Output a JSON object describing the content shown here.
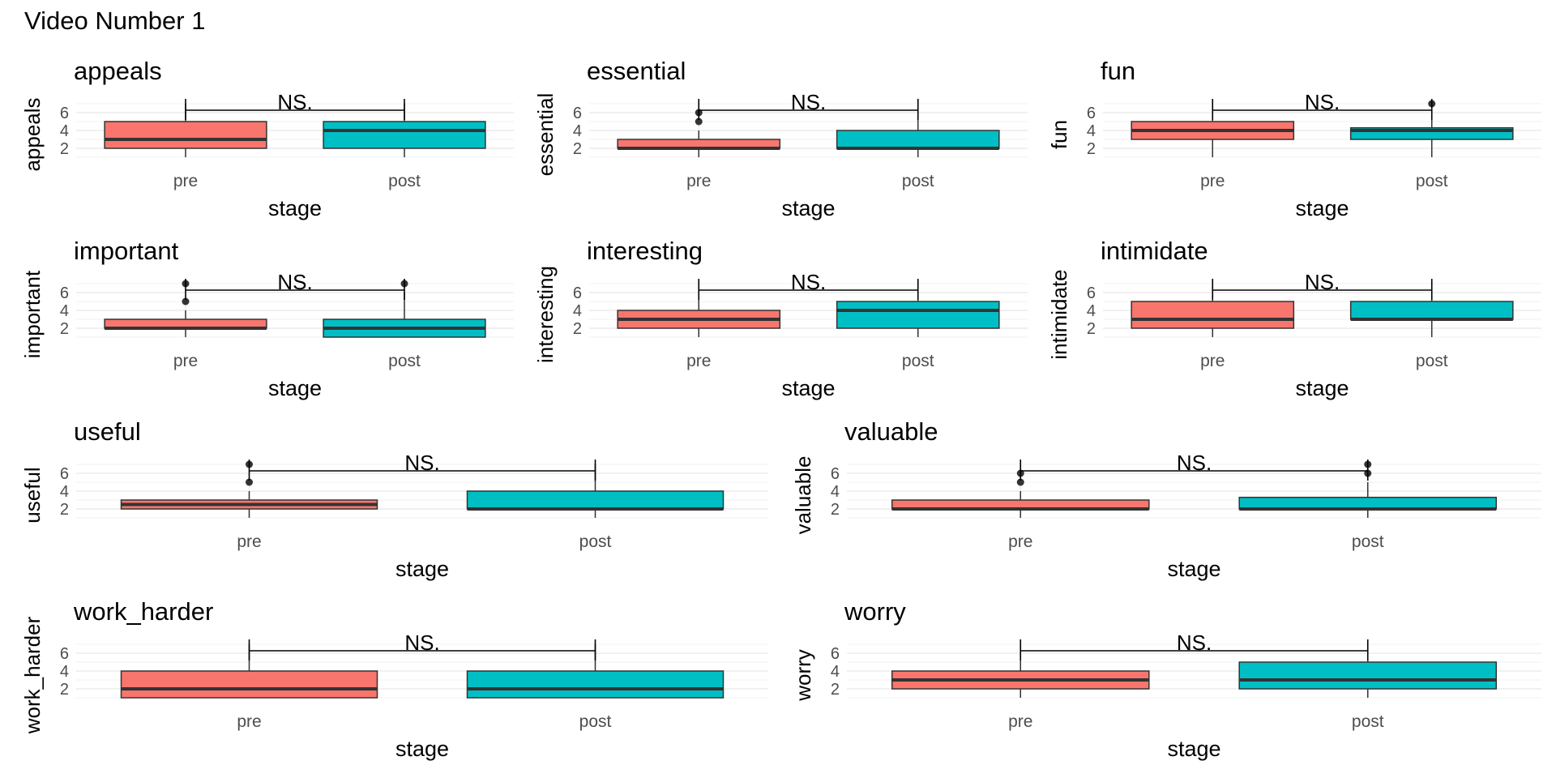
{
  "figure_title": "Video Number 1",
  "colors": {
    "pre": "#F8766D",
    "post": "#00BFC4",
    "grid": "#EBEBEB",
    "box_line": "#333333"
  },
  "chart_data": [
    {
      "type": "box",
      "title": "appeals",
      "xlabel": "stage",
      "ylabel": "appeals",
      "categories": [
        "pre",
        "post"
      ],
      "yticks": [
        2,
        4,
        6
      ],
      "ylim": [
        1,
        7
      ],
      "grid": true,
      "significance": "NS.",
      "boxes": [
        {
          "q1": 2,
          "median": 3,
          "q3": 5,
          "whisker_low": 1,
          "whisker_high": 7,
          "outliers": []
        },
        {
          "q1": 2,
          "median": 4,
          "q3": 5,
          "whisker_low": 1,
          "whisker_high": 7,
          "outliers": []
        }
      ]
    },
    {
      "type": "box",
      "title": "essential",
      "xlabel": "stage",
      "ylabel": "essential",
      "categories": [
        "pre",
        "post"
      ],
      "yticks": [
        2,
        4,
        6
      ],
      "ylim": [
        1,
        7
      ],
      "grid": true,
      "significance": "NS.",
      "boxes": [
        {
          "q1": 2,
          "median": 2,
          "q3": 3,
          "whisker_low": 1,
          "whisker_high": 4,
          "outliers": [
            5,
            6
          ]
        },
        {
          "q1": 2,
          "median": 2,
          "q3": 4,
          "whisker_low": 1,
          "whisker_high": 7,
          "outliers": []
        }
      ]
    },
    {
      "type": "box",
      "title": "fun",
      "xlabel": "stage",
      "ylabel": "fun",
      "categories": [
        "pre",
        "post"
      ],
      "yticks": [
        2,
        4,
        6
      ],
      "ylim": [
        1,
        7
      ],
      "grid": true,
      "significance": "NS.",
      "boxes": [
        {
          "q1": 3,
          "median": 4,
          "q3": 5,
          "whisker_low": 1,
          "whisker_high": 7,
          "outliers": []
        },
        {
          "q1": 3,
          "median": 4,
          "q3": 4.3,
          "whisker_low": 1,
          "whisker_high": 6.5,
          "outliers": [
            7
          ]
        }
      ]
    },
    {
      "type": "box",
      "title": "important",
      "xlabel": "stage",
      "ylabel": "important",
      "categories": [
        "pre",
        "post"
      ],
      "yticks": [
        2,
        4,
        6
      ],
      "ylim": [
        1,
        7
      ],
      "grid": true,
      "significance": "NS.",
      "boxes": [
        {
          "q1": 2,
          "median": 2,
          "q3": 3,
          "whisker_low": 1,
          "whisker_high": 4,
          "outliers": [
            5,
            7
          ]
        },
        {
          "q1": 1,
          "median": 2,
          "q3": 3,
          "whisker_low": 1,
          "whisker_high": 6,
          "outliers": [
            7
          ]
        }
      ]
    },
    {
      "type": "box",
      "title": "interesting",
      "xlabel": "stage",
      "ylabel": "interesting",
      "categories": [
        "pre",
        "post"
      ],
      "yticks": [
        2,
        4,
        6
      ],
      "ylim": [
        1,
        7
      ],
      "grid": true,
      "significance": "NS.",
      "boxes": [
        {
          "q1": 2,
          "median": 3,
          "q3": 4,
          "whisker_low": 1,
          "whisker_high": 7,
          "outliers": []
        },
        {
          "q1": 2,
          "median": 4,
          "q3": 5,
          "whisker_low": 1,
          "whisker_high": 7,
          "outliers": []
        }
      ]
    },
    {
      "type": "box",
      "title": "intimidate",
      "xlabel": "stage",
      "ylabel": "intimidate",
      "categories": [
        "pre",
        "post"
      ],
      "yticks": [
        2,
        4,
        6
      ],
      "ylim": [
        1,
        7
      ],
      "grid": true,
      "significance": "NS.",
      "boxes": [
        {
          "q1": 2,
          "median": 3,
          "q3": 5,
          "whisker_low": 1,
          "whisker_high": 7,
          "outliers": []
        },
        {
          "q1": 3,
          "median": 3,
          "q3": 5,
          "whisker_low": 1,
          "whisker_high": 7,
          "outliers": []
        }
      ]
    },
    {
      "type": "box",
      "title": "useful",
      "xlabel": "stage",
      "ylabel": "useful",
      "categories": [
        "pre",
        "post"
      ],
      "yticks": [
        2,
        4,
        6
      ],
      "ylim": [
        1,
        7
      ],
      "grid": true,
      "significance": "NS.",
      "boxes": [
        {
          "q1": 2,
          "median": 2.5,
          "q3": 3,
          "whisker_low": 1,
          "whisker_high": 4,
          "outliers": [
            5,
            7
          ]
        },
        {
          "q1": 2,
          "median": 2,
          "q3": 4,
          "whisker_low": 1,
          "whisker_high": 7,
          "outliers": []
        }
      ]
    },
    {
      "type": "box",
      "title": "valuable",
      "xlabel": "stage",
      "ylabel": "valuable",
      "categories": [
        "pre",
        "post"
      ],
      "yticks": [
        2,
        4,
        6
      ],
      "ylim": [
        1,
        7
      ],
      "grid": true,
      "significance": "NS.",
      "boxes": [
        {
          "q1": 2,
          "median": 2,
          "q3": 3,
          "whisker_low": 1,
          "whisker_high": 4,
          "outliers": [
            5,
            6
          ]
        },
        {
          "q1": 2,
          "median": 2,
          "q3": 3.3,
          "whisker_low": 1,
          "whisker_high": 5,
          "outliers": [
            6,
            7
          ]
        }
      ]
    },
    {
      "type": "box",
      "title": "work_harder",
      "xlabel": "stage",
      "ylabel": "work_harder",
      "categories": [
        "pre",
        "post"
      ],
      "yticks": [
        2,
        4,
        6
      ],
      "ylim": [
        1,
        7
      ],
      "grid": true,
      "significance": "NS.",
      "boxes": [
        {
          "q1": 1,
          "median": 2,
          "q3": 4,
          "whisker_low": 1,
          "whisker_high": 7,
          "outliers": []
        },
        {
          "q1": 1,
          "median": 2,
          "q3": 4,
          "whisker_low": 1,
          "whisker_high": 7,
          "outliers": []
        }
      ]
    },
    {
      "type": "box",
      "title": "worry",
      "xlabel": "stage",
      "ylabel": "worry",
      "categories": [
        "pre",
        "post"
      ],
      "yticks": [
        2,
        4,
        6
      ],
      "ylim": [
        1,
        7
      ],
      "grid": true,
      "significance": "NS.",
      "boxes": [
        {
          "q1": 2,
          "median": 3,
          "q3": 4,
          "whisker_low": 1,
          "whisker_high": 7,
          "outliers": []
        },
        {
          "q1": 2,
          "median": 3,
          "q3": 5,
          "whisker_low": 1,
          "whisker_high": 7,
          "outliers": []
        }
      ]
    }
  ]
}
